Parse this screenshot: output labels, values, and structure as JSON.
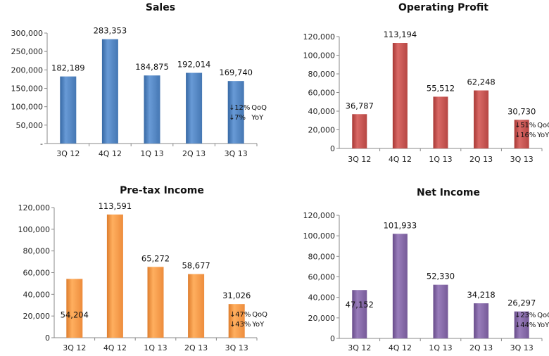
{
  "chart_data": [
    {
      "type": "bar",
      "title": "Sales",
      "categories": [
        "3Q 12",
        "4Q 12",
        "1Q 13",
        "2Q 13",
        "3Q 13"
      ],
      "values": [
        182189,
        283353,
        184875,
        192014,
        169740
      ],
      "value_labels": [
        "182,189",
        "283,353",
        "184,875",
        "192,014",
        "169,740"
      ],
      "ylim": [
        0,
        300000
      ],
      "yticks": [
        0,
        50000,
        100000,
        150000,
        200000,
        250000,
        300000
      ],
      "ytick_labels": [
        "-",
        "50,000",
        "100,000",
        "150,000",
        "200,000",
        "250,000",
        "300,000"
      ],
      "color": "#4F81BD",
      "changes": [
        {
          "arrow": "↓",
          "pct": "12%",
          "label": "QoQ"
        },
        {
          "arrow": "↓",
          "pct": "7%",
          "label": "YoY"
        }
      ]
    },
    {
      "type": "bar",
      "title": "Operating Profit",
      "categories": [
        "3Q 12",
        "4Q 12",
        "1Q 13",
        "2Q 13",
        "3Q 13"
      ],
      "values": [
        36787,
        113194,
        55512,
        62248,
        30730
      ],
      "value_labels": [
        "36,787",
        "113,194",
        "55,512",
        "62,248",
        "30,730"
      ],
      "ylim": [
        0,
        120000
      ],
      "yticks": [
        0,
        20000,
        40000,
        60000,
        80000,
        100000,
        120000
      ],
      "ytick_labels": [
        "0",
        "20,000",
        "40,000",
        "60,000",
        "80,000",
        "100,000",
        "120,000"
      ],
      "color": "#C0504D",
      "changes": [
        {
          "arrow": "↓",
          "pct": "51%",
          "label": "QoQ"
        },
        {
          "arrow": "↓",
          "pct": "16%",
          "label": "YoY"
        }
      ]
    },
    {
      "type": "bar",
      "title": "Pre-tax Income",
      "categories": [
        "3Q 12",
        "4Q 12",
        "1Q 13",
        "2Q 13",
        "3Q 13"
      ],
      "values": [
        54204,
        113591,
        65272,
        58677,
        31026
      ],
      "value_labels": [
        "54,204",
        "113,591",
        "65,272",
        "58,677",
        "31,026"
      ],
      "ylim": [
        0,
        120000
      ],
      "yticks": [
        0,
        20000,
        40000,
        60000,
        80000,
        100000,
        120000
      ],
      "ytick_labels": [
        "0",
        "20,000",
        "40,000",
        "60,000",
        "80,000",
        "100,000",
        "120,000"
      ],
      "color": "#F79646",
      "changes": [
        {
          "arrow": "↓",
          "pct": "47%",
          "label": "QoQ"
        },
        {
          "arrow": "↓",
          "pct": "43%",
          "label": "YoY"
        }
      ]
    },
    {
      "type": "bar",
      "title": "Net Income",
      "categories": [
        "3Q 12",
        "4Q 12",
        "1Q 13",
        "2Q 13",
        "3Q 13"
      ],
      "values": [
        47152,
        101933,
        52330,
        34218,
        26297
      ],
      "value_labels": [
        "47,152",
        "101,933",
        "52,330",
        "34,218",
        "26,297"
      ],
      "ylim": [
        0,
        120000
      ],
      "yticks": [
        0,
        20000,
        40000,
        60000,
        80000,
        100000,
        120000
      ],
      "ytick_labels": [
        "0",
        "20,000",
        "40,000",
        "60,000",
        "80,000",
        "100,000",
        "120,000"
      ],
      "color": "#8064A2",
      "changes": [
        {
          "arrow": "↓",
          "pct": "23%",
          "label": "QoQ"
        },
        {
          "arrow": "↓",
          "pct": "44%",
          "label": "YoY"
        }
      ]
    }
  ]
}
